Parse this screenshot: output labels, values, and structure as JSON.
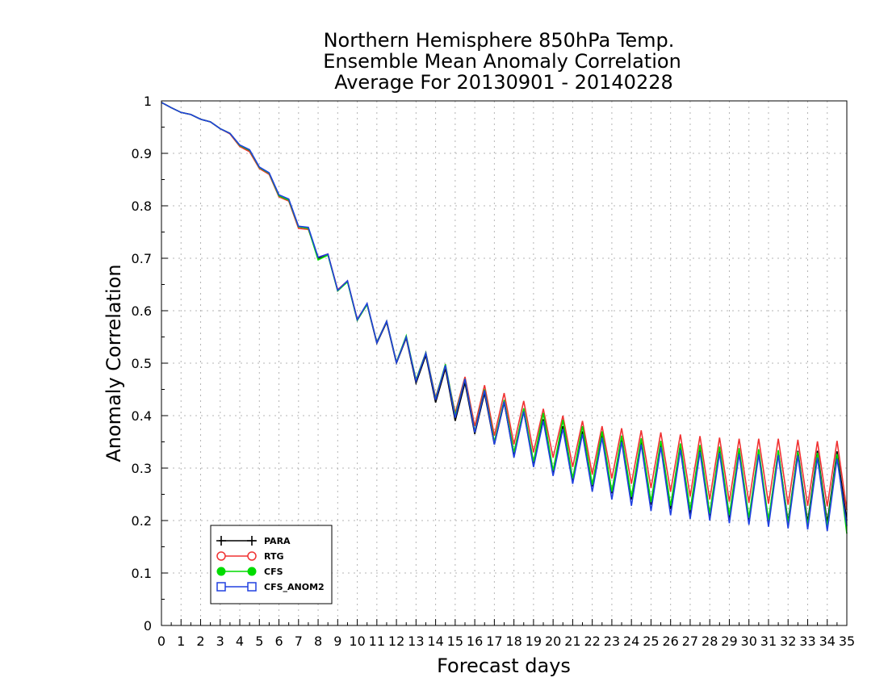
{
  "chart_data": {
    "type": "line",
    "title_lines": [
      "Northern Hemisphere 850hPa Temp.",
      "Ensemble Mean Anomaly Correlation",
      "Average For 20130901 - 20140228"
    ],
    "xlabel": "Forecast days",
    "ylabel": "Anomaly Correlation",
    "xlim": [
      0,
      35
    ],
    "ylim": [
      0,
      1
    ],
    "xticks": [
      "0",
      "1",
      "2",
      "3",
      "4",
      "5",
      "6",
      "7",
      "8",
      "9",
      "10",
      "11",
      "12",
      "13",
      "14",
      "15",
      "16",
      "17",
      "18",
      "19",
      "20",
      "21",
      "22",
      "23",
      "24",
      "25",
      "26",
      "27",
      "28",
      "29",
      "30",
      "31",
      "32",
      "33",
      "34",
      "35"
    ],
    "yticks": [
      "0",
      "0.1",
      "0.2",
      "0.3",
      "0.4",
      "0.5",
      "0.6",
      "0.7",
      "0.8",
      "0.9",
      "1"
    ],
    "grid": true,
    "legend_position": "bottom-left",
    "x_step": 0.5,
    "series": [
      {
        "name": "PARA",
        "color": "#000000",
        "marker": "plus",
        "values": [
          0.997,
          0.987,
          0.978,
          0.974,
          0.965,
          0.96,
          0.947,
          0.938,
          0.915,
          0.905,
          0.873,
          0.862,
          0.82,
          0.812,
          0.76,
          0.758,
          0.7,
          0.708,
          0.638,
          0.656,
          0.582,
          0.612,
          0.538,
          0.578,
          0.5,
          0.548,
          0.462,
          0.515,
          0.425,
          0.49,
          0.39,
          0.463,
          0.365,
          0.443,
          0.345,
          0.425,
          0.323,
          0.408,
          0.307,
          0.393,
          0.29,
          0.38,
          0.276,
          0.37,
          0.265,
          0.362,
          0.252,
          0.356,
          0.24,
          0.35,
          0.23,
          0.346,
          0.222,
          0.341,
          0.21,
          0.338,
          0.205,
          0.335,
          0.202,
          0.332,
          0.2,
          0.331,
          0.198,
          0.332,
          0.198,
          0.333,
          0.197,
          0.333,
          0.196,
          0.332,
          0.2
        ]
      },
      {
        "name": "RTG",
        "color": "#f03232",
        "marker": "circle-open",
        "values": [
          0.997,
          0.987,
          0.978,
          0.974,
          0.965,
          0.96,
          0.947,
          0.937,
          0.913,
          0.903,
          0.871,
          0.86,
          0.817,
          0.809,
          0.757,
          0.755,
          0.702,
          0.708,
          0.64,
          0.657,
          0.584,
          0.613,
          0.54,
          0.58,
          0.502,
          0.55,
          0.468,
          0.52,
          0.435,
          0.495,
          0.405,
          0.474,
          0.38,
          0.458,
          0.362,
          0.443,
          0.345,
          0.428,
          0.33,
          0.413,
          0.32,
          0.4,
          0.302,
          0.39,
          0.288,
          0.38,
          0.28,
          0.376,
          0.27,
          0.372,
          0.262,
          0.368,
          0.255,
          0.364,
          0.246,
          0.361,
          0.24,
          0.358,
          0.236,
          0.356,
          0.234,
          0.356,
          0.232,
          0.356,
          0.23,
          0.354,
          0.228,
          0.351,
          0.227,
          0.352,
          0.22
        ]
      },
      {
        "name": "CFS",
        "color": "#00dc00",
        "marker": "circle-filled",
        "values": [
          0.997,
          0.987,
          0.978,
          0.974,
          0.965,
          0.96,
          0.947,
          0.938,
          0.915,
          0.906,
          0.873,
          0.862,
          0.819,
          0.811,
          0.76,
          0.757,
          0.697,
          0.706,
          0.638,
          0.655,
          0.582,
          0.612,
          0.54,
          0.58,
          0.502,
          0.552,
          0.468,
          0.52,
          0.432,
          0.498,
          0.4,
          0.47,
          0.37,
          0.45,
          0.35,
          0.43,
          0.33,
          0.414,
          0.312,
          0.405,
          0.295,
          0.392,
          0.28,
          0.38,
          0.268,
          0.37,
          0.255,
          0.362,
          0.245,
          0.357,
          0.235,
          0.352,
          0.228,
          0.347,
          0.22,
          0.344,
          0.213,
          0.341,
          0.21,
          0.338,
          0.205,
          0.336,
          0.2,
          0.334,
          0.195,
          0.331,
          0.191,
          0.329,
          0.188,
          0.327,
          0.175
        ]
      },
      {
        "name": "CFS_ANOM2",
        "color": "#2040e0",
        "marker": "square-open",
        "values": [
          0.997,
          0.987,
          0.978,
          0.974,
          0.965,
          0.96,
          0.947,
          0.938,
          0.916,
          0.907,
          0.874,
          0.863,
          0.821,
          0.813,
          0.761,
          0.759,
          0.702,
          0.708,
          0.639,
          0.657,
          0.583,
          0.614,
          0.539,
          0.58,
          0.501,
          0.55,
          0.466,
          0.519,
          0.43,
          0.496,
          0.396,
          0.47,
          0.368,
          0.448,
          0.345,
          0.427,
          0.32,
          0.408,
          0.302,
          0.39,
          0.285,
          0.375,
          0.27,
          0.365,
          0.255,
          0.358,
          0.24,
          0.35,
          0.228,
          0.345,
          0.218,
          0.34,
          0.21,
          0.335,
          0.203,
          0.331,
          0.2,
          0.329,
          0.195,
          0.327,
          0.192,
          0.326,
          0.188,
          0.325,
          0.185,
          0.324,
          0.183,
          0.32,
          0.18,
          0.318,
          0.19
        ]
      }
    ]
  }
}
